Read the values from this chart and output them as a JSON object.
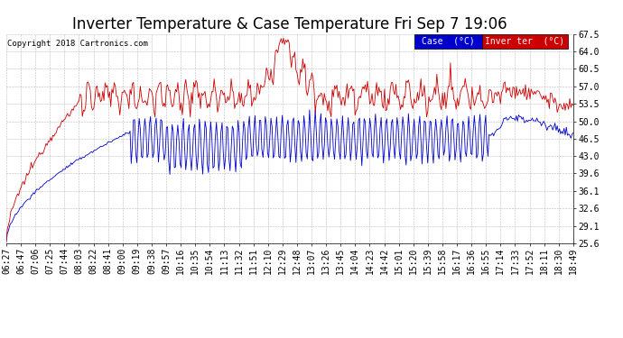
{
  "title": "Inverter Temperature & Case Temperature Fri Sep 7 19:06",
  "copyright": "Copyright 2018 Cartronics.com",
  "ylabel_right_ticks": [
    25.6,
    29.1,
    32.6,
    36.1,
    39.6,
    43.0,
    46.5,
    50.0,
    53.5,
    57.0,
    60.5,
    64.0,
    67.5
  ],
  "ylim": [
    25.6,
    67.5
  ],
  "x_labels": [
    "06:27",
    "06:47",
    "07:06",
    "07:25",
    "07:44",
    "08:03",
    "08:22",
    "08:41",
    "09:00",
    "09:19",
    "09:38",
    "09:57",
    "10:16",
    "10:35",
    "10:54",
    "11:13",
    "11:32",
    "11:51",
    "12:10",
    "12:29",
    "12:48",
    "13:07",
    "13:26",
    "13:45",
    "14:04",
    "14:23",
    "14:42",
    "15:01",
    "15:20",
    "15:39",
    "15:58",
    "16:17",
    "16:36",
    "16:55",
    "17:14",
    "17:33",
    "17:52",
    "18:11",
    "18:30",
    "18:49"
  ],
  "bg_color": "#ffffff",
  "grid_color": "#bbbbbb",
  "case_color": "#0000cc",
  "inverter_color": "#cc0000",
  "title_fontsize": 12,
  "tick_fontsize": 7,
  "legend_case_bg": "#0000cc",
  "legend_inverter_bg": "#cc0000",
  "legend_case_label": "Case  (°C)",
  "legend_inverter_label": "Inver ter  (°C)"
}
